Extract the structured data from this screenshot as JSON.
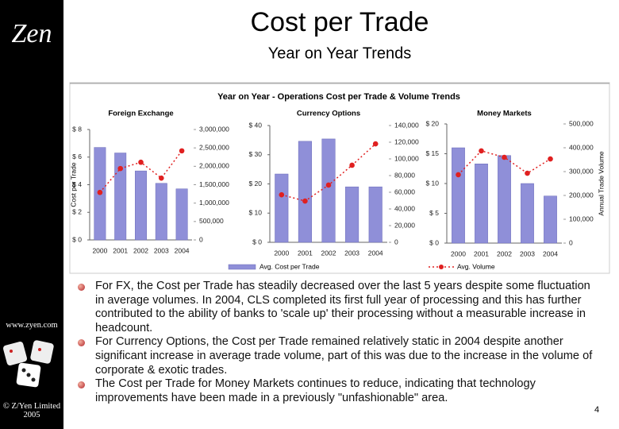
{
  "header": {
    "title": "Cost per Trade",
    "subtitle": "Year on Year Trends"
  },
  "sidebar": {
    "logo": "Zen",
    "url": "www.zyen.com",
    "copyright": "© Z/Yen Limited 2005"
  },
  "figure_title": "Year on Year - Operations Cost per Trade & Volume Trends",
  "legend": [
    "Avg. Cost per Trade",
    "Avg. Volume"
  ],
  "chart_data": [
    {
      "type": "combo",
      "title": "Foreign Exchange",
      "ylabel": "Cost per Trade",
      "categories": [
        "2000",
        "2001",
        "2002",
        "2003",
        "2004"
      ],
      "series": [
        {
          "type": "bar",
          "color": "#8f8fd8",
          "values": [
            6.7,
            6.3,
            5.0,
            4.1,
            3.7
          ]
        },
        {
          "type": "line",
          "axis": "y2",
          "color": "#e02020",
          "values": [
            1290000,
            1940000,
            2110000,
            1680000,
            2420000
          ]
        }
      ],
      "ylim": [
        0,
        8
      ],
      "yticks": [
        {
          "value": 0,
          "label": "$ 0"
        },
        {
          "value": 2,
          "label": "$ 2"
        },
        {
          "value": 4,
          "label": "$ 4"
        },
        {
          "value": 6,
          "label": "$ 6"
        },
        {
          "value": 8,
          "label": "$ 8"
        }
      ],
      "y2lim": [
        0,
        3000000
      ],
      "y2ticks": [
        0,
        {
          "value": 500000,
          "label": "500,000"
        },
        {
          "value": 1000000,
          "label": "1,000,000"
        },
        {
          "value": 1500000,
          "label": "1,500,000"
        },
        {
          "value": 2000000,
          "label": "2,000,000"
        },
        {
          "value": 2500000,
          "label": "2,500,000"
        },
        {
          "value": 3000000,
          "label": "3,000,000"
        }
      ]
    },
    {
      "type": "combo",
      "title": "Currency Options",
      "categories": [
        "2000",
        "2001",
        "2002",
        "2003",
        "2004"
      ],
      "series": [
        {
          "type": "bar",
          "color": "#8f8fd8",
          "values": [
            23.4,
            34.6,
            35.4,
            19.0,
            19.0
          ]
        },
        {
          "type": "line",
          "axis": "y2",
          "color": "#e02020",
          "values": [
            57000,
            49500,
            68600,
            92400,
            118000
          ]
        }
      ],
      "ylim": [
        0,
        40
      ],
      "yticks": [
        {
          "value": 0,
          "label": "$ 0"
        },
        {
          "value": 10,
          "label": "$ 10"
        },
        {
          "value": 20,
          "label": "$ 20"
        },
        {
          "value": 30,
          "label": "$ 30"
        },
        {
          "value": 40,
          "label": "$ 40"
        }
      ],
      "y2lim": [
        0,
        140000
      ],
      "y2ticks": [
        0,
        {
          "value": 20000,
          "label": "20,000"
        },
        {
          "value": 40000,
          "label": "40,000"
        },
        {
          "value": 60000,
          "label": "60,000"
        },
        {
          "value": 80000,
          "label": "80,000"
        },
        {
          "value": 100000,
          "label": "100,000"
        },
        {
          "value": 120000,
          "label": "120,000"
        },
        {
          "value": 140000,
          "label": "140,000"
        }
      ]
    },
    {
      "type": "combo",
      "title": "Money Markets",
      "y2label": "Annual Trade Volume",
      "categories": [
        "2000",
        "2001",
        "2002",
        "2003",
        "2004"
      ],
      "series": [
        {
          "type": "bar",
          "color": "#8f8fd8",
          "values": [
            16.0,
            13.3,
            14.7,
            10.0,
            7.9
          ]
        },
        {
          "type": "line",
          "axis": "y2",
          "color": "#e02020",
          "values": [
            287000,
            387000,
            360000,
            293000,
            353000
          ]
        }
      ],
      "ylim": [
        0,
        20
      ],
      "yticks": [
        {
          "value": 0,
          "label": "$ 0"
        },
        {
          "value": 5,
          "label": "$ 5"
        },
        {
          "value": 10,
          "label": "$ 10"
        },
        {
          "value": 15,
          "label": "$ 15"
        },
        {
          "value": 20,
          "label": "$ 20"
        }
      ],
      "y2lim": [
        0,
        500000
      ],
      "y2ticks": [
        0,
        {
          "value": 100000,
          "label": "100,000"
        },
        {
          "value": 200000,
          "label": "200,000"
        },
        {
          "value": 300000,
          "label": "300,000"
        },
        {
          "value": 400000,
          "label": "400,000"
        },
        {
          "value": 500000,
          "label": "500,000"
        }
      ]
    }
  ],
  "bullets": [
    "For FX, the Cost per Trade has steadily decreased over the last 5 years despite some fluctuation in average volumes.  In 2004, CLS completed its first full year of processing and this has further contributed to the ability of banks to 'scale up' their processing without a measurable increase in headcount.",
    "For Currency Options, the Cost per Trade remained relatively static in 2004 despite another significant increase in average trade volume, part of this was due to the increase in the volume of corporate & exotic trades.",
    "The Cost per Trade for Money Markets continues to reduce, indicating that technology improvements have been made in a previously \"unfashionable\" area."
  ],
  "page_number": "4"
}
